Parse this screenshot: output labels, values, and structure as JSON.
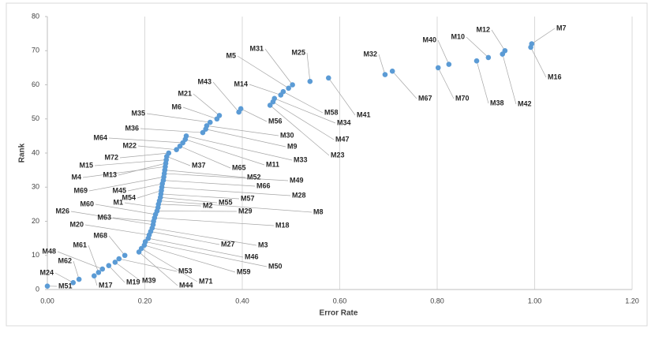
{
  "chart_data": {
    "type": "scatter",
    "xlabel": "Error Rate",
    "ylabel": "Rank",
    "color": "#5b9bd5",
    "grid": "x",
    "xlim": [
      0,
      1.2
    ],
    "ylim": [
      0,
      80
    ],
    "xticks": [
      {
        "value": 0,
        "label": "0.00"
      },
      {
        "value": 0.2,
        "label": "0.20"
      },
      {
        "value": 0.4,
        "label": "0.40"
      },
      {
        "value": 0.6,
        "label": "0.60"
      },
      {
        "value": 0.8,
        "label": "0.80"
      },
      {
        "value": 1,
        "label": "1.00"
      },
      {
        "value": 1.2,
        "label": "1.20"
      }
    ],
    "yticks": [
      0,
      10,
      20,
      30,
      40,
      50,
      60,
      70,
      80
    ],
    "x": [
      0.0,
      0.053,
      0.065,
      0.096,
      0.105,
      0.113,
      0.126,
      0.139,
      0.147,
      0.159,
      0.188,
      0.193,
      0.199,
      0.201,
      0.207,
      0.209,
      0.212,
      0.215,
      0.217,
      0.218,
      0.22,
      0.222,
      0.225,
      0.227,
      0.228,
      0.23,
      0.232,
      0.233,
      0.234,
      0.235,
      0.236,
      0.238,
      0.239,
      0.24,
      0.241,
      0.242,
      0.243,
      0.244,
      0.245,
      0.249,
      0.265,
      0.272,
      0.278,
      0.283,
      0.285,
      0.319,
      0.325,
      0.327,
      0.334,
      0.348,
      0.353,
      0.393,
      0.397,
      0.457,
      0.463,
      0.466,
      0.479,
      0.484,
      0.495,
      0.503,
      0.539,
      0.577,
      0.693,
      0.708,
      0.802,
      0.824,
      0.881,
      0.905,
      0.934,
      0.939,
      0.992,
      0.994
    ],
    "values": [
      1,
      2,
      3,
      4,
      5,
      6,
      7,
      8,
      9,
      10,
      11,
      12,
      13,
      14,
      15,
      16,
      17,
      18,
      19,
      20,
      21,
      22,
      23,
      24,
      25,
      26,
      27,
      28,
      29,
      30,
      31,
      32,
      33,
      34,
      35,
      36,
      37,
      38,
      39,
      40,
      41,
      42,
      43,
      44,
      45,
      46,
      47,
      48,
      49,
      50,
      51,
      52,
      53,
      54,
      55,
      56,
      57,
      58,
      59,
      60,
      61,
      62,
      63,
      64,
      65,
      66,
      67,
      68,
      69,
      70,
      71,
      72
    ],
    "point_labels": [
      "M51",
      "M24",
      "M62",
      "M17",
      "M61",
      "M48",
      "M19",
      "M39",
      "M53",
      "M68",
      "M44",
      "M71",
      "M59",
      "M50",
      "M46",
      "M20",
      "M27",
      "M3",
      "M26",
      "M63",
      "M18",
      "M60",
      "M29",
      "M1",
      "M2",
      "M8",
      "M55",
      "M57",
      "M54",
      "M28",
      "M45",
      "M66",
      "M69",
      "M49",
      "M52",
      "M4",
      "M13",
      "M15",
      "M37",
      "M72",
      "M22",
      "M65",
      "M64",
      "M11",
      "M33",
      "M36",
      "M9",
      "M30",
      "M35",
      "M6",
      "M21",
      "M43",
      "M56",
      "M23",
      "M47",
      "M34",
      "M14",
      "M58",
      "M5",
      "M31",
      "M25",
      "M41",
      "M32",
      "M67",
      "M70",
      "M40",
      "M38",
      "M10",
      "M42",
      "M12",
      "M16",
      "M7"
    ]
  }
}
